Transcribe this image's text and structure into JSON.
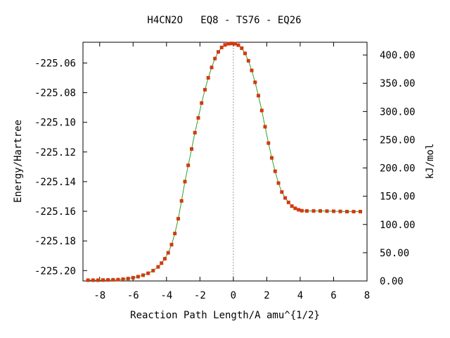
{
  "chart_data": {
    "type": "line",
    "title": "H4CN2O   EQ8 - TS76 - EQ26",
    "xlabel": "Reaction Path Length/A amu^{1/2}",
    "ylabel": "Energy/Hartree",
    "y2label": "kJ/mol",
    "xlim": [
      -9.0,
      8.0
    ],
    "ylim": [
      -225.207,
      -225.046
    ],
    "y2lim": [
      0.0,
      422.6
    ],
    "x_ticks": [
      -8,
      -6,
      -4,
      -2,
      0,
      2,
      4,
      6,
      8
    ],
    "y_ticks": [
      -225.06,
      -225.08,
      -225.1,
      -225.12,
      -225.14,
      -225.16,
      -225.18,
      -225.2
    ],
    "y_tick_labels": [
      "-225.06",
      "-225.08",
      "-225.10",
      "-225.12",
      "-225.14",
      "-225.16",
      "-225.18",
      "-225.20"
    ],
    "y2_ticks": [
      0,
      50,
      100,
      150,
      200,
      250,
      300,
      350,
      400
    ],
    "y2_tick_labels": [
      "0.00",
      "50.00",
      "100.00",
      "150.00",
      "200.00",
      "250.00",
      "300.00",
      "350.00",
      "400.00"
    ],
    "grid": false,
    "ts_marker_x": 0.0,
    "colors": {
      "line": "#2fa12f",
      "points": "#d23a10",
      "ts_line": "#9a9a9a",
      "axis": "#000000"
    },
    "series": [
      {
        "points": [
          [
            -8.7,
            -225.2065
          ],
          [
            -8.4,
            -225.2065
          ],
          [
            -8.1,
            -225.2065
          ],
          [
            -7.8,
            -225.2064
          ],
          [
            -7.5,
            -225.2063
          ],
          [
            -7.2,
            -225.2062
          ],
          [
            -6.9,
            -225.2061
          ],
          [
            -6.6,
            -225.2058
          ],
          [
            -6.3,
            -225.2054
          ],
          [
            -6.0,
            -225.2048
          ],
          [
            -5.7,
            -225.2041
          ],
          [
            -5.4,
            -225.2031
          ],
          [
            -5.1,
            -225.2018
          ],
          [
            -4.8,
            -225.2
          ],
          [
            -4.5,
            -225.1975
          ],
          [
            -4.3,
            -225.195
          ],
          [
            -4.1,
            -225.192
          ],
          [
            -3.9,
            -225.188
          ],
          [
            -3.7,
            -225.1825
          ],
          [
            -3.5,
            -225.175
          ],
          [
            -3.3,
            -225.165
          ],
          [
            -3.1,
            -225.153
          ],
          [
            -2.9,
            -225.14
          ],
          [
            -2.7,
            -225.129
          ],
          [
            -2.5,
            -225.118
          ],
          [
            -2.3,
            -225.107
          ],
          [
            -2.1,
            -225.097
          ],
          [
            -1.9,
            -225.087
          ],
          [
            -1.7,
            -225.078
          ],
          [
            -1.5,
            -225.07
          ],
          [
            -1.3,
            -225.063
          ],
          [
            -1.1,
            -225.057
          ],
          [
            -0.9,
            -225.0525
          ],
          [
            -0.7,
            -225.0495
          ],
          [
            -0.5,
            -225.0478
          ],
          [
            -0.3,
            -225.047
          ],
          [
            -0.1,
            -225.0468
          ],
          [
            0.1,
            -225.047
          ],
          [
            0.3,
            -225.048
          ],
          [
            0.5,
            -225.05
          ],
          [
            0.7,
            -225.0535
          ],
          [
            0.9,
            -225.0585
          ],
          [
            1.1,
            -225.065
          ],
          [
            1.3,
            -225.073
          ],
          [
            1.5,
            -225.082
          ],
          [
            1.7,
            -225.092
          ],
          [
            1.9,
            -225.103
          ],
          [
            2.1,
            -225.114
          ],
          [
            2.3,
            -225.124
          ],
          [
            2.5,
            -225.133
          ],
          [
            2.7,
            -225.141
          ],
          [
            2.9,
            -225.147
          ],
          [
            3.1,
            -225.151
          ],
          [
            3.3,
            -225.154
          ],
          [
            3.5,
            -225.1565
          ],
          [
            3.7,
            -225.158
          ],
          [
            3.9,
            -225.159
          ],
          [
            4.1,
            -225.1596
          ],
          [
            4.4,
            -225.1598
          ],
          [
            4.8,
            -225.1598
          ],
          [
            5.2,
            -225.1598
          ],
          [
            5.6,
            -225.1599
          ],
          [
            6.0,
            -225.16
          ],
          [
            6.4,
            -225.1601
          ],
          [
            6.8,
            -225.1602
          ],
          [
            7.2,
            -225.1602
          ],
          [
            7.6,
            -225.1602
          ]
        ]
      }
    ]
  }
}
